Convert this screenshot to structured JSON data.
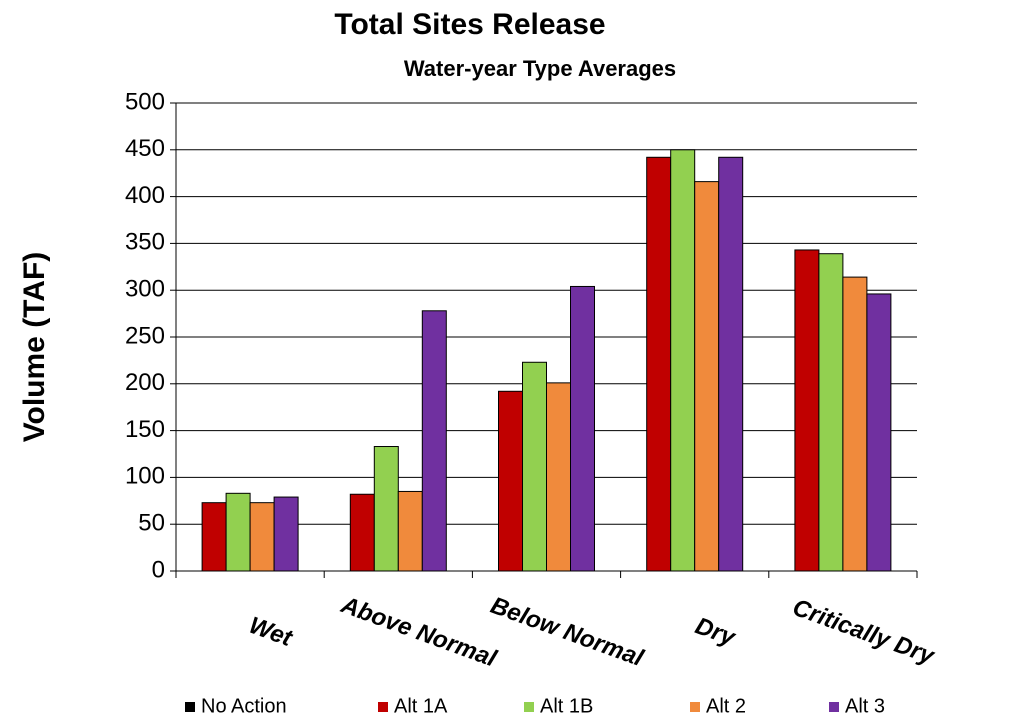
{
  "chart_data": {
    "type": "bar",
    "title": "Total Sites Release",
    "subtitle": "Water-year Type Averages",
    "y_label": "Volume (TAF)",
    "categories": [
      "Wet",
      "Above Normal",
      "Below Normal",
      "Dry",
      "Critically Dry"
    ],
    "series": [
      {
        "name": "No Action",
        "color": "#000000",
        "values": [
          null,
          null,
          null,
          null,
          null
        ]
      },
      {
        "name": "Alt 1A",
        "color": "#c00000",
        "values": [
          73,
          82,
          192,
          442,
          343
        ]
      },
      {
        "name": "Alt 1B",
        "color": "#92d050",
        "values": [
          83,
          133,
          223,
          450,
          339
        ]
      },
      {
        "name": "Alt 2",
        "color": "#f08a3c",
        "values": [
          73,
          85,
          201,
          416,
          314
        ]
      },
      {
        "name": "Alt 3",
        "color": "#7030a0",
        "values": [
          79,
          278,
          304,
          442,
          296
        ]
      }
    ],
    "ylim": [
      0,
      500
    ],
    "yticks": [
      0,
      50,
      100,
      150,
      200,
      250,
      300,
      350,
      400,
      450,
      500
    ],
    "grid": true
  }
}
